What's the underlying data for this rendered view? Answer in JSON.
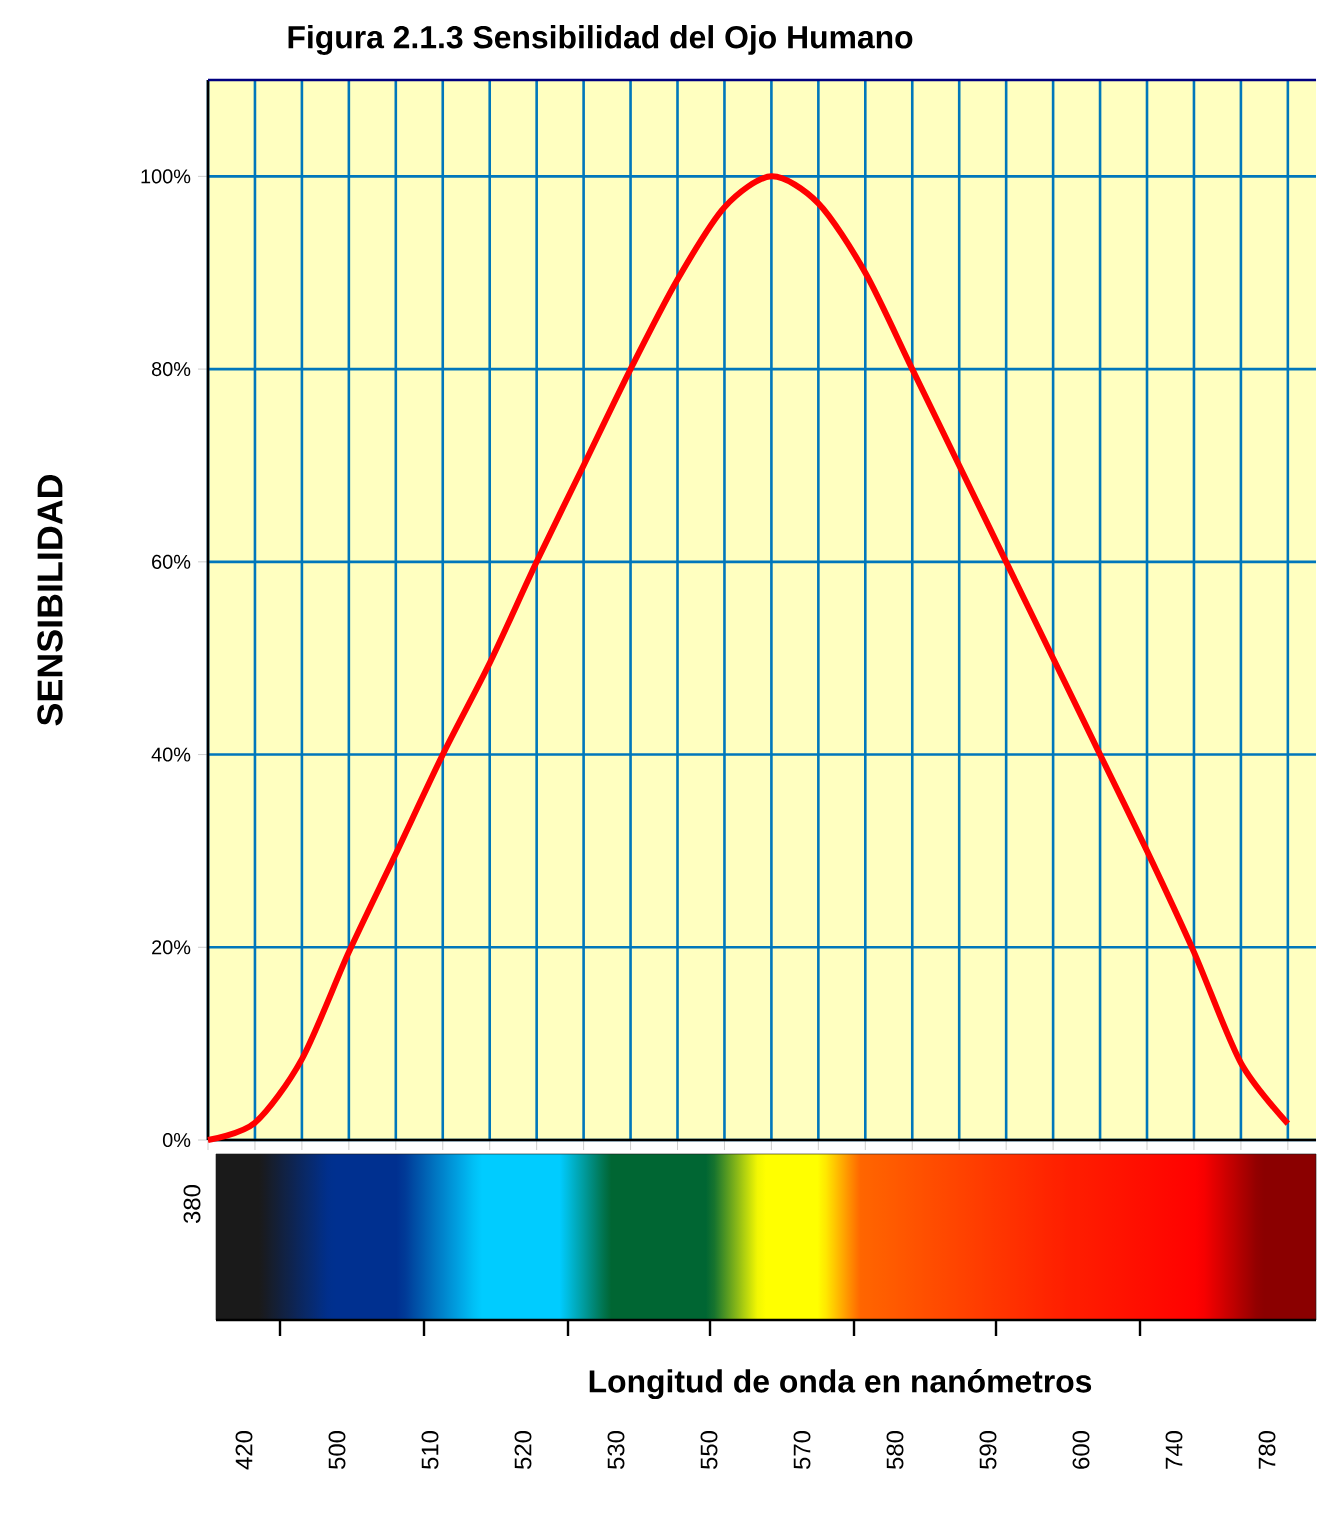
{
  "chart_data": {
    "type": "line",
    "title": "Figura 2.1.3  Sensibilidad del Ojo Humano",
    "ylabel": "SENSIBILIDAD",
    "categories": [
      null,
      null,
      null,
      null,
      null,
      null,
      null,
      null,
      null,
      null,
      null,
      null,
      null,
      null,
      null,
      null,
      null,
      null,
      null,
      null,
      null,
      null,
      null,
      null
    ],
    "series": [
      {
        "color": "#ff0000",
        "values": [
          0,
          1.8,
          8.4,
          19.5,
          29.7,
          40,
          49.5,
          60,
          70,
          80,
          89.3,
          96.8,
          100,
          97.2,
          90,
          80,
          70,
          60,
          50,
          40,
          30,
          19.5,
          8,
          1.7
        ]
      }
    ],
    "ylim": [
      0,
      110
    ],
    "yticks": [
      {
        "value": 0,
        "label": "0%"
      },
      {
        "value": 20,
        "label": "20%"
      },
      {
        "value": 40,
        "label": "40%"
      },
      {
        "value": 60,
        "label": "60%"
      },
      {
        "value": 80,
        "label": "80%"
      },
      {
        "value": 100,
        "label": "100%"
      }
    ],
    "grid": true,
    "annotations": [
      "380",
      "420",
      "500",
      "510",
      "520",
      "530",
      "550",
      "570",
      "580",
      "590",
      "600",
      "740",
      "780",
      "Longitud de onda en nanómetros"
    ]
  }
}
